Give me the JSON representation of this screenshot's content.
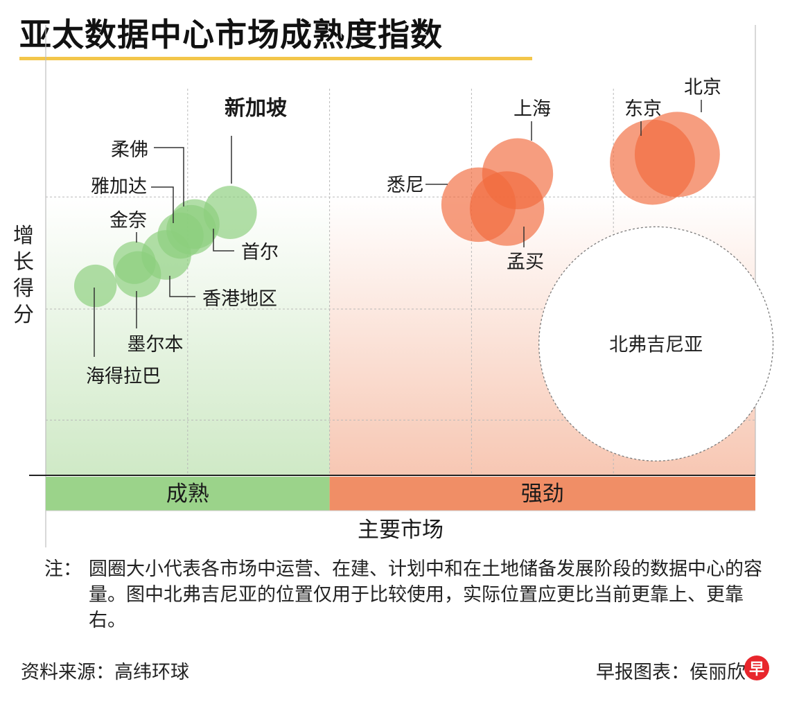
{
  "title": "亚太数据中心市场成熟度指数",
  "y_axis_label": "增长得分",
  "note_label": "注：",
  "note_text": "圆圈大小代表各市场中运营、在建、计划中和在土地储备发展阶段的数据中心的容量。图中北弗吉尼亚的位置仅用于比较使用，实际位置应更比当前更靠上、更靠右。",
  "source": "资料来源：高纬环球",
  "credit": "早报图表：侯丽欣",
  "logo_text": "早",
  "colors": {
    "green_fill": "#8ccf7e",
    "green_band": "#9bd38a",
    "orange_fill": "#f26a3c",
    "orange_band": "#f08e66",
    "reference": "#ffffff",
    "title_underline": "#f3c64a"
  },
  "chart_data": {
    "type": "bubble",
    "title": "亚太数据中心市场成熟度指数",
    "xlabel": "主要市场",
    "ylabel": "增长得分",
    "xlim": [
      0,
      100
    ],
    "ylim": [
      0,
      100
    ],
    "grid": true,
    "tick_labels_shown": false,
    "categories": [
      {
        "name": "成熟",
        "x_range": [
          0,
          40
        ],
        "color": "#9bd38a"
      },
      {
        "name": "强劲",
        "x_range": [
          40,
          100
        ],
        "color": "#f08e66"
      }
    ],
    "series": [
      {
        "name": "成熟",
        "color": "#8ccf7e",
        "points": [
          {
            "label": "海得拉巴",
            "x": 7,
            "y": 49,
            "size": 6
          },
          {
            "label": "墨尔本",
            "x": 13,
            "y": 52,
            "size": 6.5
          },
          {
            "label": "金奈",
            "x": 12.5,
            "y": 55,
            "size": 6
          },
          {
            "label": "香港地区",
            "x": 17,
            "y": 57,
            "size": 7
          },
          {
            "label": "雅加达",
            "x": 19,
            "y": 62,
            "size": 6.5
          },
          {
            "label": "柔佛",
            "x": 20.5,
            "y": 63.5,
            "size": 7
          },
          {
            "label": "首尔",
            "x": 21,
            "y": 65,
            "size": 7
          },
          {
            "label": "新加坡",
            "x": 26,
            "y": 68,
            "size": 7.5
          }
        ]
      },
      {
        "name": "强劲",
        "color": "#f26a3c",
        "points": [
          {
            "label": "悉尼",
            "x": 61,
            "y": 70,
            "size": 10.5
          },
          {
            "label": "孟买",
            "x": 65,
            "y": 69,
            "size": 10.5
          },
          {
            "label": "上海",
            "x": 66.5,
            "y": 78,
            "size": 10
          },
          {
            "label": "东京",
            "x": 85.5,
            "y": 81,
            "size": 12
          },
          {
            "label": "北京",
            "x": 89,
            "y": 83,
            "size": 12
          }
        ]
      },
      {
        "name": "reference",
        "color": "#ffffff",
        "points": [
          {
            "label": "北弗吉尼亚",
            "x": 86,
            "y": 34,
            "size": 33
          }
        ]
      }
    ]
  }
}
